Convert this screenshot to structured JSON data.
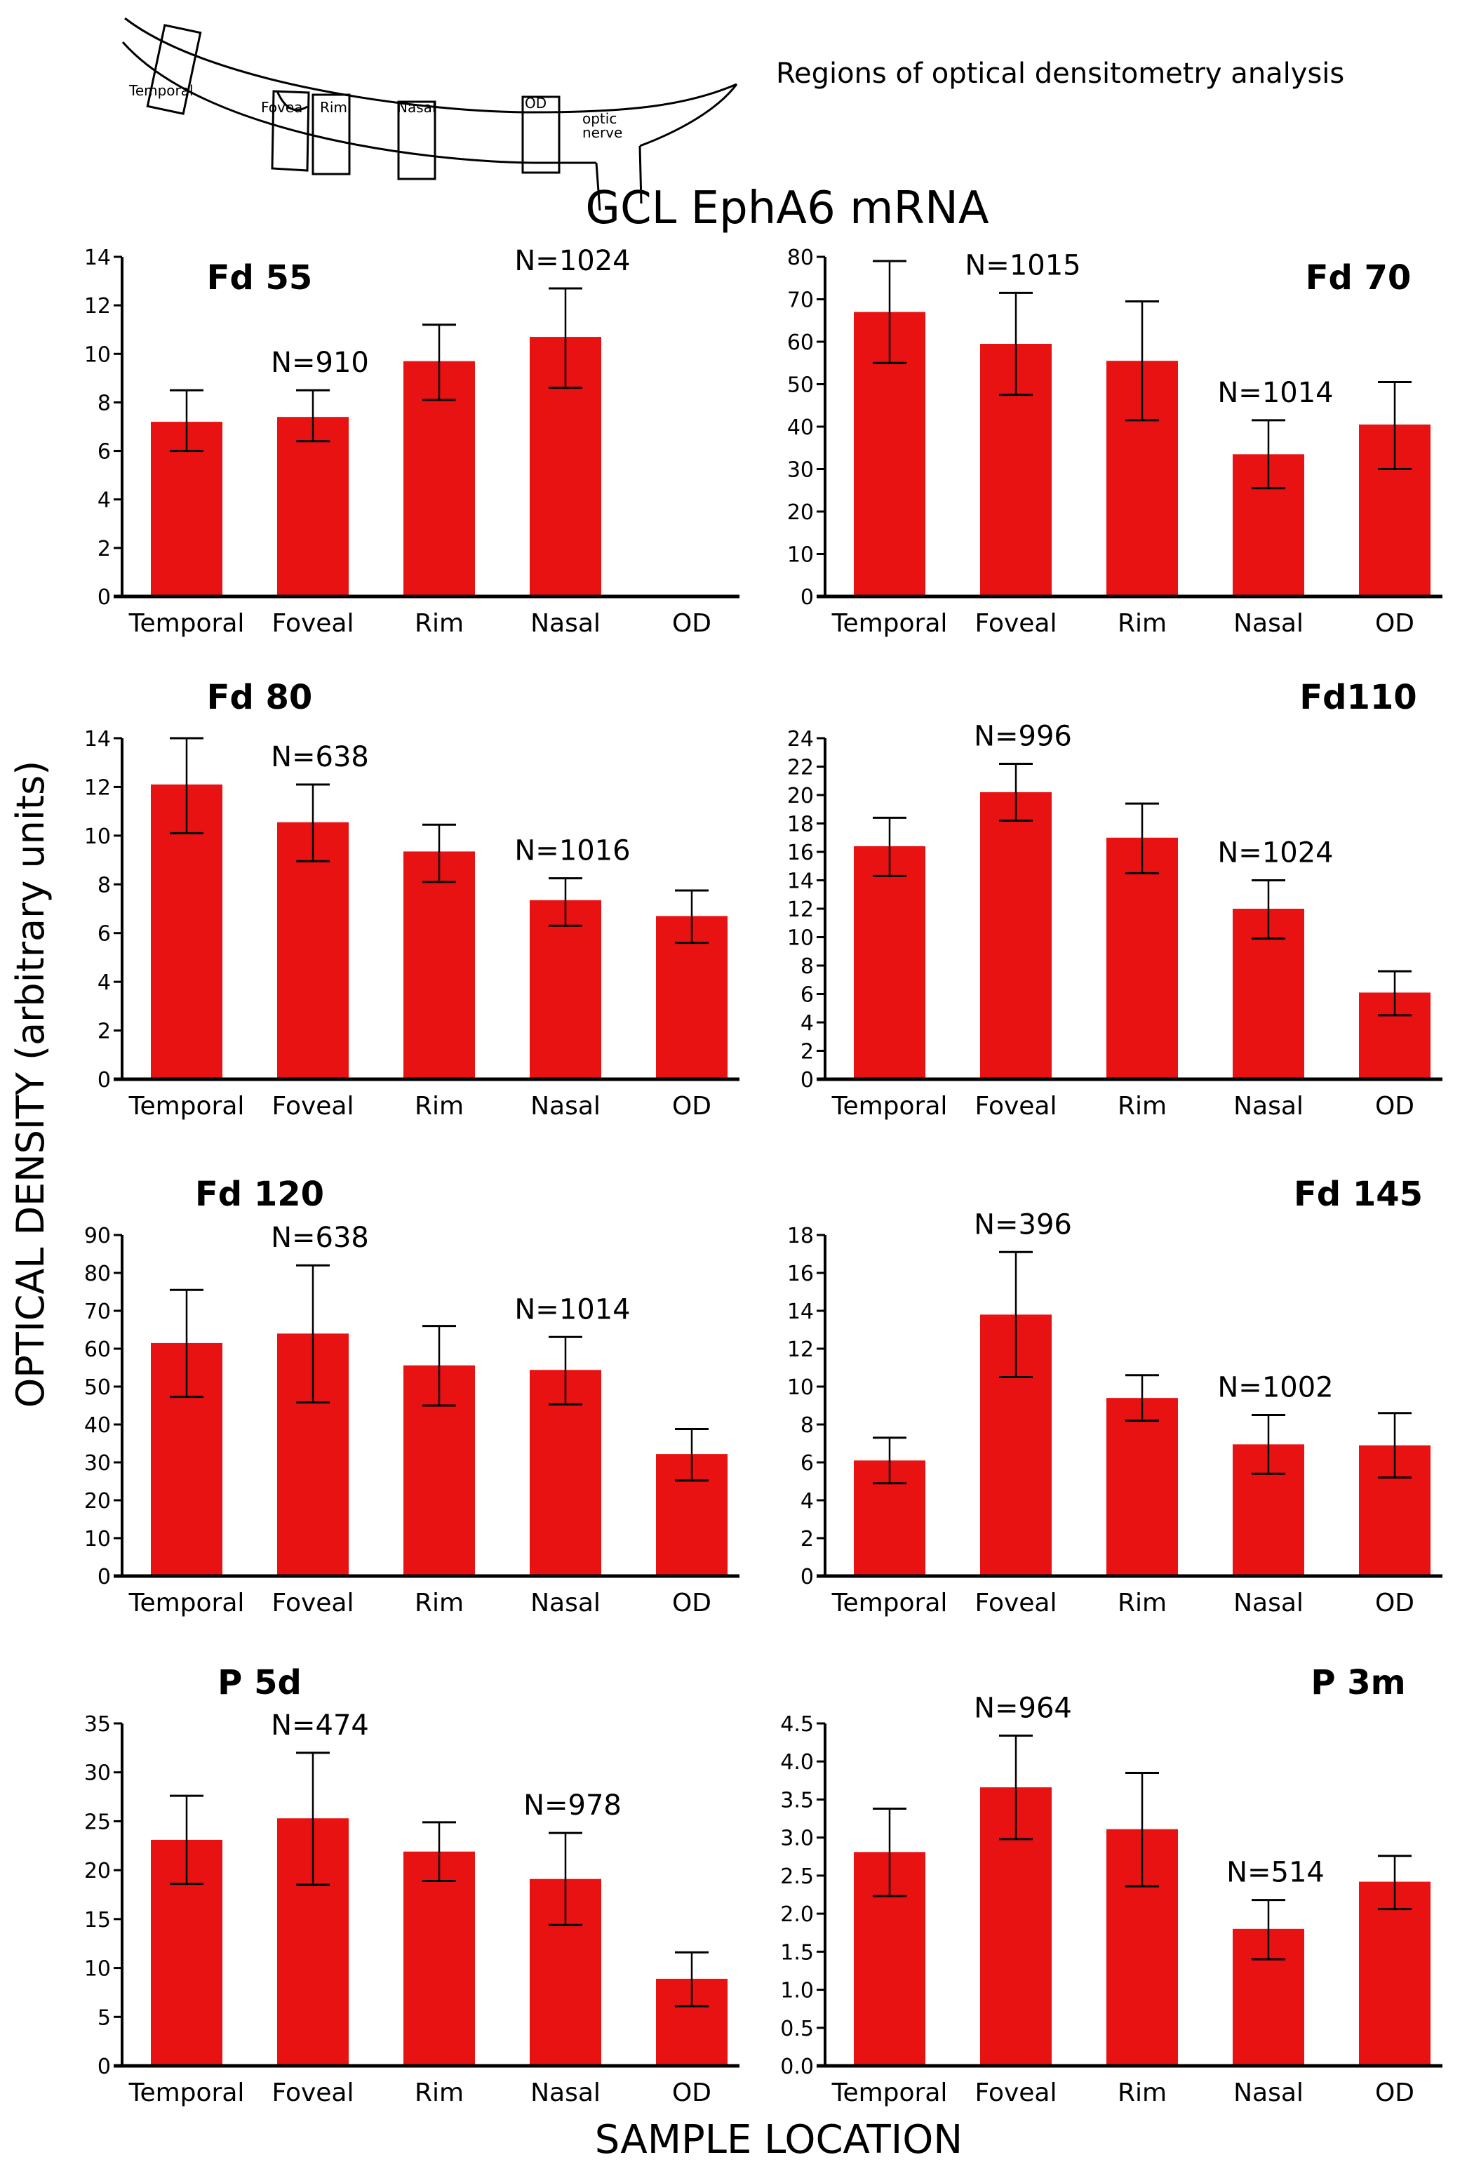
{
  "diagram": {
    "caption": "Regions of optical densitometry analysis",
    "region_labels": [
      "Temporal",
      "Fovea",
      "Rim",
      "Nasal",
      "OD"
    ],
    "optic_label_1": "optic",
    "optic_label_2": "nerve"
  },
  "figure": {
    "title": "GCL EphA6 mRNA",
    "ylabel": "OPTICAL DENSITY (arbitrary units)",
    "xlabel": "SAMPLE LOCATION",
    "bar_color": "#e81212",
    "error_color": "#000000"
  },
  "chart_data": [
    {
      "type": "bar",
      "title": "Fd 55",
      "title_position": "top-left",
      "categories": [
        "Temporal",
        "Foveal",
        "Rim",
        "Nasal",
        "OD"
      ],
      "values": [
        7.2,
        7.4,
        9.7,
        10.7,
        null
      ],
      "error_low": [
        6.0,
        6.4,
        8.1,
        8.6,
        null
      ],
      "error_high": [
        8.5,
        8.5,
        11.2,
        12.7,
        null
      ],
      "annotations": [
        {
          "category": "Foveal",
          "text": "N=910"
        },
        {
          "category": "Nasal",
          "text": "N=1024"
        }
      ],
      "ylim": [
        0,
        14
      ],
      "yticks": [
        0,
        2,
        4,
        6,
        8,
        10,
        12,
        14
      ],
      "ytick_labels": [
        "0",
        "2",
        "4",
        "6",
        "8",
        "10",
        "12",
        "14"
      ]
    },
    {
      "type": "bar",
      "title": "Fd 70",
      "title_position": "top-right",
      "categories": [
        "Temporal",
        "Foveal",
        "Rim",
        "Nasal",
        "OD"
      ],
      "values": [
        67.0,
        59.5,
        55.5,
        33.5,
        40.5
      ],
      "error_low": [
        55.0,
        47.5,
        41.5,
        25.5,
        30.0
      ],
      "error_high": [
        79.0,
        71.5,
        69.5,
        41.5,
        50.5
      ],
      "annotations": [
        {
          "category": "Foveal",
          "text": "N=1015"
        },
        {
          "category": "Nasal",
          "text": "N=1014"
        }
      ],
      "ylim": [
        0,
        80
      ],
      "yticks": [
        0,
        10,
        20,
        30,
        40,
        50,
        60,
        70,
        80
      ],
      "ytick_labels": [
        "0",
        "10",
        "20",
        "30",
        "40",
        "50",
        "60",
        "70",
        "80"
      ]
    },
    {
      "type": "bar",
      "title": "Fd 80",
      "title_position": "top-left",
      "categories": [
        "Temporal",
        "Foveal",
        "Rim",
        "Nasal",
        "OD"
      ],
      "values": [
        12.1,
        10.55,
        9.35,
        7.35,
        6.7
      ],
      "error_low": [
        10.1,
        8.95,
        8.1,
        6.3,
        5.6
      ],
      "error_high": [
        14.0,
        12.1,
        10.45,
        8.25,
        7.75
      ],
      "annotations": [
        {
          "category": "Foveal",
          "text": "N=638"
        },
        {
          "category": "Nasal",
          "text": "N=1016"
        }
      ],
      "ylim": [
        0,
        14
      ],
      "yticks": [
        0,
        2,
        4,
        6,
        8,
        10,
        12,
        14
      ],
      "ytick_labels": [
        "0",
        "2",
        "4",
        "6",
        "8",
        "10",
        "12",
        "14"
      ]
    },
    {
      "type": "bar",
      "title": "Fd110",
      "title_position": "top-right",
      "categories": [
        "Temporal",
        "Foveal",
        "Rim",
        "Nasal",
        "OD"
      ],
      "values": [
        16.4,
        20.2,
        17.0,
        12.0,
        6.1
      ],
      "error_low": [
        14.3,
        18.2,
        14.5,
        9.9,
        4.5
      ],
      "error_high": [
        18.4,
        22.2,
        19.4,
        14.0,
        7.6
      ],
      "annotations": [
        {
          "category": "Foveal",
          "text": "N=996"
        },
        {
          "category": "Nasal",
          "text": "N=1024"
        }
      ],
      "ylim": [
        0,
        24
      ],
      "yticks": [
        0,
        2,
        4,
        6,
        8,
        10,
        12,
        14,
        16,
        18,
        20,
        22,
        24
      ],
      "ytick_labels": [
        "0",
        "2",
        "4",
        "6",
        "8",
        "10",
        "12",
        "14",
        "16",
        "18",
        "20",
        "22",
        "24"
      ]
    },
    {
      "type": "bar",
      "title": "Fd 120",
      "title_position": "top-left",
      "categories": [
        "Temporal",
        "Foveal",
        "Rim",
        "Nasal",
        "OD"
      ],
      "values": [
        61.5,
        64.0,
        55.6,
        54.4,
        32.2
      ],
      "error_low": [
        47.3,
        45.8,
        45.0,
        45.3,
        25.2
      ],
      "error_high": [
        75.5,
        82.0,
        66.0,
        63.1,
        38.8
      ],
      "annotations": [
        {
          "category": "Foveal",
          "text": "N=638"
        },
        {
          "category": "Nasal",
          "text": "N=1014"
        }
      ],
      "ylim": [
        0,
        90
      ],
      "yticks": [
        0,
        10,
        20,
        30,
        40,
        50,
        60,
        70,
        80,
        90
      ],
      "ytick_labels": [
        "0",
        "10",
        "20",
        "30",
        "40",
        "50",
        "60",
        "70",
        "80",
        "90"
      ]
    },
    {
      "type": "bar",
      "title": "Fd 145",
      "title_position": "top-right",
      "categories": [
        "Temporal",
        "Foveal",
        "Rim",
        "Nasal",
        "OD"
      ],
      "values": [
        6.1,
        13.8,
        9.4,
        6.95,
        6.9
      ],
      "error_low": [
        4.9,
        10.5,
        8.2,
        5.4,
        5.2
      ],
      "error_high": [
        7.3,
        17.1,
        10.6,
        8.5,
        8.6
      ],
      "annotations": [
        {
          "category": "Foveal",
          "text": "N=396"
        },
        {
          "category": "Nasal",
          "text": "N=1002"
        }
      ],
      "ylim": [
        0,
        18
      ],
      "yticks": [
        0,
        2,
        4,
        6,
        8,
        10,
        12,
        14,
        16,
        18
      ],
      "ytick_labels": [
        "0",
        "2",
        "4",
        "6",
        "8",
        "10",
        "12",
        "14",
        "16",
        "18"
      ]
    },
    {
      "type": "bar",
      "title": "P 5d",
      "title_position": "top-left",
      "categories": [
        "Temporal",
        "Foveal",
        "Rim",
        "Nasal",
        "OD"
      ],
      "values": [
        23.1,
        25.3,
        21.9,
        19.1,
        8.9
      ],
      "error_low": [
        18.6,
        18.5,
        18.9,
        14.4,
        6.1
      ],
      "error_high": [
        27.6,
        32.0,
        24.9,
        23.8,
        11.6
      ],
      "annotations": [
        {
          "category": "Foveal",
          "text": "N=474"
        },
        {
          "category": "Nasal",
          "text": "N=978"
        }
      ],
      "ylim": [
        0,
        35
      ],
      "yticks": [
        0,
        5,
        10,
        15,
        20,
        25,
        30,
        35
      ],
      "ytick_labels": [
        "0",
        "5",
        "10",
        "15",
        "20",
        "25",
        "30",
        "35"
      ]
    },
    {
      "type": "bar",
      "title": "P 3m",
      "title_position": "top-right",
      "categories": [
        "Temporal",
        "Foveal",
        "Rim",
        "Nasal",
        "OD"
      ],
      "values": [
        2.81,
        3.66,
        3.11,
        1.8,
        2.42
      ],
      "error_low": [
        2.23,
        2.98,
        2.36,
        1.4,
        2.06
      ],
      "error_high": [
        3.38,
        4.34,
        3.85,
        2.18,
        2.76
      ],
      "annotations": [
        {
          "category": "Foveal",
          "text": "N=964"
        },
        {
          "category": "Nasal",
          "text": "N=514"
        }
      ],
      "ylim": [
        0,
        4.5
      ],
      "yticks": [
        0,
        0.5,
        1,
        1.5,
        2,
        2.5,
        3,
        3.5,
        4,
        4.5
      ],
      "ytick_labels": [
        "0.0",
        "0.5",
        "1.0",
        "1.5",
        "2.0",
        "2.5",
        "3.0",
        "3.5",
        "4.0",
        "4.5"
      ]
    }
  ]
}
